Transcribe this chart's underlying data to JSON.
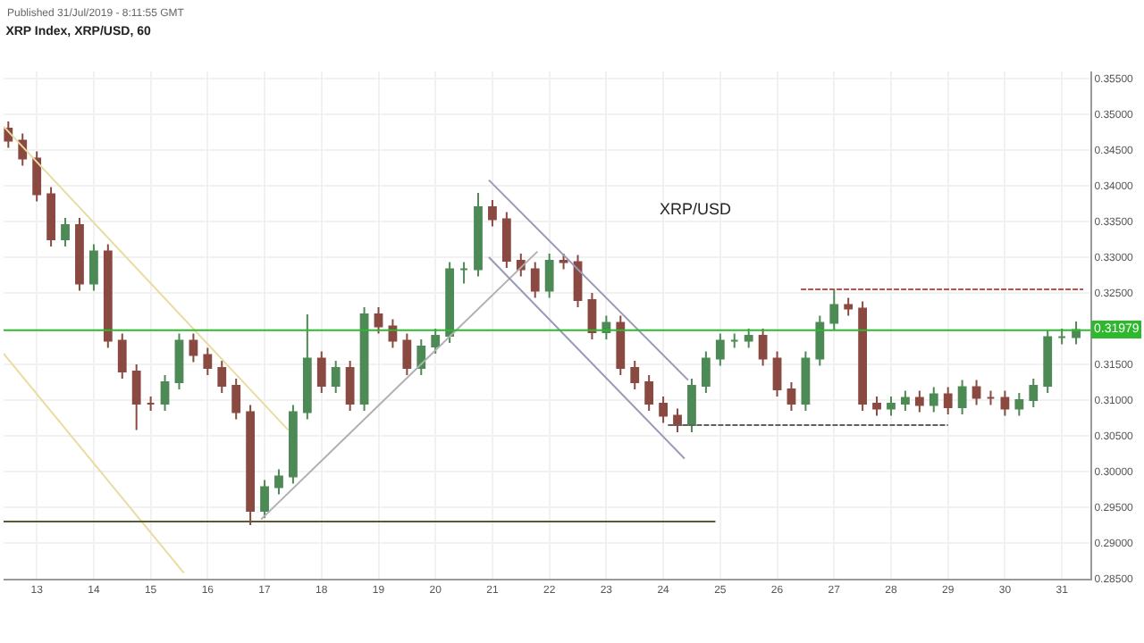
{
  "chart_data": {
    "type": "candlestick",
    "title": "XRP Index, XRP/USD, 60",
    "annotations": [
      "Published 31/Jul/2019 - 8:11:55 GMT",
      "XRP/USD"
    ],
    "x": [
      "--07-12T12:00",
      "--07-12T18:00",
      "--07-13T00:00",
      "--07-13T06:00",
      "--07-13T12:00",
      "--07-13T18:00",
      "--07-14T00:00",
      "--07-14T06:00",
      "--07-14T12:00",
      "--07-14T18:00",
      "--07-15T00:00",
      "--07-15T06:00",
      "--07-15T12:00",
      "--07-15T18:00",
      "--07-16T00:00",
      "--07-16T06:00",
      "--07-16T12:00",
      "--07-16T18:00",
      "--07-17T00:00",
      "--07-17T06:00",
      "--07-17T12:00",
      "--07-17T18:00",
      "--07-18T00:00",
      "--07-18T06:00",
      "--07-18T12:00",
      "--07-18T18:00",
      "--07-19T00:00",
      "--07-19T06:00",
      "--07-19T12:00",
      "--07-19T18:00",
      "--07-20T00:00",
      "--07-20T06:00",
      "--07-20T12:00",
      "--07-20T18:00",
      "--07-21T00:00",
      "--07-21T06:00",
      "--07-21T12:00",
      "--07-21T18:00",
      "--07-22T00:00",
      "--07-22T06:00",
      "--07-22T12:00",
      "--07-22T18:00",
      "--07-23T00:00",
      "--07-23T06:00",
      "--07-23T12:00",
      "--07-23T18:00",
      "--07-24T00:00",
      "--07-24T06:00",
      "--07-24T12:00",
      "--07-24T18:00",
      "--07-25T00:00",
      "--07-25T06:00",
      "--07-25T12:00",
      "--07-25T18:00",
      "--07-26T00:00",
      "--07-26T06:00",
      "--07-26T12:00",
      "--07-26T18:00",
      "--07-27T00:00",
      "--07-27T06:00",
      "--07-27T12:00",
      "--07-27T18:00",
      "--07-28T00:00",
      "--07-28T06:00",
      "--07-28T12:00",
      "--07-28T18:00",
      "--07-29T00:00",
      "--07-29T06:00",
      "--07-29T12:00",
      "--07-29T18:00",
      "--07-30T00:00",
      "--07-30T06:00",
      "--07-30T12:00",
      "--07-30T18:00",
      "--07-31T00:00",
      "--07-31T06:00"
    ],
    "ohlc": [
      [
        0.348,
        0.349,
        0.3453,
        0.3463
      ],
      [
        0.3463,
        0.3473,
        0.3428,
        0.3438
      ],
      [
        0.3438,
        0.3448,
        0.3378,
        0.3388
      ],
      [
        0.3388,
        0.3398,
        0.3315,
        0.3325
      ],
      [
        0.3325,
        0.3355,
        0.3315,
        0.3345
      ],
      [
        0.3345,
        0.3355,
        0.3253,
        0.3263
      ],
      [
        0.3263,
        0.3318,
        0.3253,
        0.3308
      ],
      [
        0.3308,
        0.3318,
        0.3173,
        0.3183
      ],
      [
        0.3183,
        0.3193,
        0.313,
        0.314
      ],
      [
        0.314,
        0.315,
        0.3058,
        0.3095
      ],
      [
        0.3095,
        0.3105,
        0.3085,
        0.3095
      ],
      [
        0.3095,
        0.3135,
        0.3085,
        0.3125
      ],
      [
        0.3125,
        0.3193,
        0.3115,
        0.3183
      ],
      [
        0.3183,
        0.3193,
        0.3153,
        0.3163
      ],
      [
        0.3163,
        0.3173,
        0.3135,
        0.3145
      ],
      [
        0.3145,
        0.3155,
        0.311,
        0.312
      ],
      [
        0.312,
        0.313,
        0.3073,
        0.3083
      ],
      [
        0.3083,
        0.3093,
        0.2925,
        0.2945
      ],
      [
        0.2945,
        0.2988,
        0.2935,
        0.2978
      ],
      [
        0.2978,
        0.3003,
        0.2968,
        0.2993
      ],
      [
        0.2993,
        0.3093,
        0.2983,
        0.3083
      ],
      [
        0.3083,
        0.322,
        0.3073,
        0.3158
      ],
      [
        0.3158,
        0.3168,
        0.311,
        0.312
      ],
      [
        0.312,
        0.3155,
        0.311,
        0.3145
      ],
      [
        0.3145,
        0.3155,
        0.3085,
        0.3095
      ],
      [
        0.3095,
        0.323,
        0.3085,
        0.322
      ],
      [
        0.322,
        0.323,
        0.3193,
        0.3203
      ],
      [
        0.3203,
        0.3213,
        0.3173,
        0.3183
      ],
      [
        0.3183,
        0.3193,
        0.3135,
        0.3145
      ],
      [
        0.3145,
        0.3185,
        0.3135,
        0.3175
      ],
      [
        0.3175,
        0.32,
        0.3165,
        0.319
      ],
      [
        0.319,
        0.3293,
        0.318,
        0.3283
      ],
      [
        0.3283,
        0.3293,
        0.3263,
        0.3283
      ],
      [
        0.3283,
        0.339,
        0.3273,
        0.337
      ],
      [
        0.337,
        0.338,
        0.3343,
        0.3353
      ],
      [
        0.3353,
        0.3363,
        0.3285,
        0.3295
      ],
      [
        0.3295,
        0.3305,
        0.3273,
        0.3283
      ],
      [
        0.3283,
        0.3293,
        0.3243,
        0.3253
      ],
      [
        0.3253,
        0.3305,
        0.3243,
        0.3295
      ],
      [
        0.3295,
        0.3305,
        0.3283,
        0.3293
      ],
      [
        0.3293,
        0.3303,
        0.323,
        0.324
      ],
      [
        0.324,
        0.325,
        0.3185,
        0.3195
      ],
      [
        0.3195,
        0.3218,
        0.3185,
        0.3208
      ],
      [
        0.3208,
        0.3218,
        0.3135,
        0.3145
      ],
      [
        0.3145,
        0.3155,
        0.3115,
        0.3125
      ],
      [
        0.3125,
        0.3135,
        0.3085,
        0.3095
      ],
      [
        0.3095,
        0.3105,
        0.3068,
        0.3078
      ],
      [
        0.3078,
        0.3088,
        0.3055,
        0.3065
      ],
      [
        0.3065,
        0.313,
        0.3055,
        0.312
      ],
      [
        0.312,
        0.3168,
        0.311,
        0.3158
      ],
      [
        0.3158,
        0.3193,
        0.3148,
        0.3183
      ],
      [
        0.3183,
        0.3193,
        0.3173,
        0.3183
      ],
      [
        0.3183,
        0.32,
        0.3173,
        0.319
      ],
      [
        0.319,
        0.32,
        0.3148,
        0.3158
      ],
      [
        0.3158,
        0.3168,
        0.3105,
        0.3115
      ],
      [
        0.3115,
        0.3125,
        0.3085,
        0.3095
      ],
      [
        0.3095,
        0.3168,
        0.3085,
        0.3158
      ],
      [
        0.3158,
        0.3218,
        0.3148,
        0.3208
      ],
      [
        0.3208,
        0.3255,
        0.3198,
        0.3233
      ],
      [
        0.3233,
        0.3243,
        0.3218,
        0.3228
      ],
      [
        0.3228,
        0.3238,
        0.3085,
        0.3095
      ],
      [
        0.3095,
        0.3105,
        0.3078,
        0.3088
      ],
      [
        0.3088,
        0.3105,
        0.3078,
        0.3095
      ],
      [
        0.3095,
        0.3113,
        0.3085,
        0.3103
      ],
      [
        0.3103,
        0.3113,
        0.3083,
        0.3093
      ],
      [
        0.3093,
        0.3118,
        0.3083,
        0.3108
      ],
      [
        0.3108,
        0.3118,
        0.308,
        0.309
      ],
      [
        0.309,
        0.3128,
        0.308,
        0.3118
      ],
      [
        0.3118,
        0.3128,
        0.3093,
        0.3103
      ],
      [
        0.3103,
        0.3113,
        0.3093,
        0.3103
      ],
      [
        0.3103,
        0.3113,
        0.3078,
        0.3088
      ],
      [
        0.3088,
        0.311,
        0.3078,
        0.31
      ],
      [
        0.31,
        0.313,
        0.309,
        0.312
      ],
      [
        0.312,
        0.3198,
        0.311,
        0.3188
      ],
      [
        0.3188,
        0.32,
        0.3178,
        0.3188
      ],
      [
        0.3188,
        0.321,
        0.3178,
        0.3198
      ]
    ],
    "series": [
      {
        "type": "line",
        "x": [
          "--07-12T10:00",
          "--07-17T10:00"
        ],
        "values": [
          0.3483,
          0.3058
        ],
        "color": "#e8dca0",
        "line_style": "solid"
      },
      {
        "type": "line",
        "x": [
          "--07-12T10:00",
          "--07-15T14:00"
        ],
        "values": [
          0.3165,
          0.2858
        ],
        "color": "#e8dca0",
        "line_style": "solid"
      },
      {
        "type": "line",
        "x": [
          "--07-16T22:30",
          "--07-21T19:00"
        ],
        "values": [
          0.2933,
          0.3308
        ],
        "color": "#b0b0b0",
        "line_style": "solid"
      },
      {
        "type": "line",
        "x": [
          "--07-20T22:30",
          "--07-24T10:30"
        ],
        "values": [
          0.3408,
          0.3128
        ],
        "color": "#9a9ab8",
        "line_style": "solid"
      },
      {
        "type": "line",
        "x": [
          "--07-20T22:30",
          "--07-24T09:00"
        ],
        "values": [
          0.33,
          0.3018
        ],
        "color": "#9a9ab8",
        "line_style": "solid"
      },
      {
        "type": "line",
        "x": [
          "--07-12T10:00",
          "--07-24T22:00"
        ],
        "values": [
          0.293,
          0.293
        ],
        "color": "#5a5a30",
        "line_style": "solid"
      },
      {
        "type": "line",
        "x": [
          "--07-26T10:00",
          "--07-31T09:00"
        ],
        "values": [
          0.3255,
          0.3255
        ],
        "color": "#c0504d",
        "line_style": "dashed"
      },
      {
        "type": "line",
        "x": [
          "--07-24T02:00",
          "--07-29T00:00"
        ],
        "values": [
          0.3065,
          0.3065
        ],
        "color": "#606060",
        "line_style": "dashed"
      }
    ],
    "ref_lines": [
      {
        "axis": "y",
        "value": 0.31979,
        "label": "0.31979",
        "color": "#2eb82e"
      }
    ],
    "xlim": [
      "--07-12T10:00",
      "--07-31T12:00"
    ],
    "xticks": [
      {
        "value": "--07-13",
        "label": "13"
      },
      {
        "value": "--07-14",
        "label": "14"
      },
      {
        "value": "--07-15",
        "label": "15"
      },
      {
        "value": "--07-16",
        "label": "16"
      },
      {
        "value": "--07-17",
        "label": "17"
      },
      {
        "value": "--07-18",
        "label": "18"
      },
      {
        "value": "--07-19",
        "label": "19"
      },
      {
        "value": "--07-20",
        "label": "20"
      },
      {
        "value": "--07-21",
        "label": "21"
      },
      {
        "value": "--07-22",
        "label": "22"
      },
      {
        "value": "--07-23",
        "label": "23"
      },
      {
        "value": "--07-24",
        "label": "24"
      },
      {
        "value": "--07-25",
        "label": "25"
      },
      {
        "value": "--07-26",
        "label": "26"
      },
      {
        "value": "--07-27",
        "label": "27"
      },
      {
        "value": "--07-28",
        "label": "28"
      },
      {
        "value": "--07-29",
        "label": "29"
      },
      {
        "value": "--07-30",
        "label": "30"
      },
      {
        "value": "--07-31",
        "label": "31"
      }
    ],
    "ylim": [
      0.285,
      0.356
    ],
    "yticks": [
      {
        "value": 0.285,
        "label": "0.28500"
      },
      {
        "value": 0.29,
        "label": "0.29000"
      },
      {
        "value": 0.295,
        "label": "0.29500"
      },
      {
        "value": 0.3,
        "label": "0.30000"
      },
      {
        "value": 0.305,
        "label": "0.30500"
      },
      {
        "value": 0.31,
        "label": "0.31000"
      },
      {
        "value": 0.315,
        "label": "0.31500"
      },
      {
        "value": 0.325,
        "label": "0.32500"
      },
      {
        "value": 0.33,
        "label": "0.33000"
      },
      {
        "value": 0.335,
        "label": "0.33500"
      },
      {
        "value": 0.34,
        "label": "0.34000"
      },
      {
        "value": 0.345,
        "label": "0.34500"
      },
      {
        "value": 0.35,
        "label": "0.35000"
      },
      {
        "value": 0.355,
        "label": "0.35500"
      }
    ],
    "grid": true
  }
}
